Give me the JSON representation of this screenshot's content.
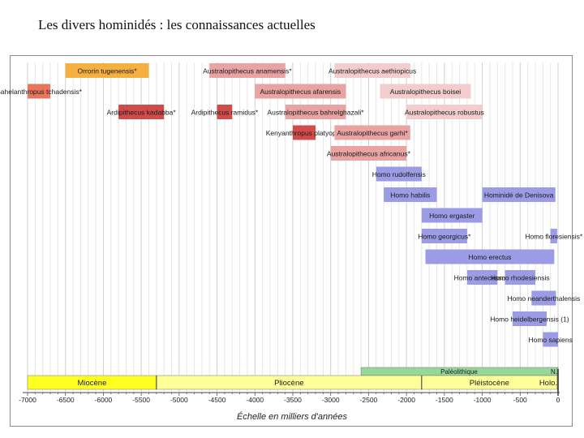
{
  "page": {
    "title": "Les divers hominidés : les connaissances actuelles",
    "caption": "Échelle en milliers d'années"
  },
  "chart_data": {
    "type": "timeline",
    "title": "Les divers hominidés : les connaissances actuelles",
    "xlabel": "Échelle en milliers d'années",
    "xlim": [
      -7100,
      0
    ],
    "ticks": [
      -7000,
      -6500,
      -6000,
      -5500,
      -5000,
      -4500,
      -4000,
      -3500,
      -3000,
      -2500,
      -2000,
      -1500,
      -1000,
      -500,
      0
    ],
    "colors": {
      "orange": "#f5b041",
      "salmon": "#e8765e",
      "red": "#d14b4b",
      "pink": "#e9a3a3",
      "lightpink": "#f3cdcd",
      "blue": "#9b9be6",
      "green": "#95d89a",
      "yellow": "#ffff22",
      "lightyellow": "#ffff99"
    },
    "species": [
      {
        "name": "Orrorin tugenensis*",
        "start": -6500,
        "end": -5400,
        "row": 0,
        "color": "orange"
      },
      {
        "name": "Australopithecus anamensis*",
        "start": -4600,
        "end": -3600,
        "row": 0,
        "color": "pink"
      },
      {
        "name": "Australopithecus aethiopicus",
        "start": -2950,
        "end": -1950,
        "row": 0,
        "color": "lightpink"
      },
      {
        "name": "Sahelanthropus tchadensis*",
        "start": -7000,
        "end": -6700,
        "row": 1,
        "color": "salmon"
      },
      {
        "name": "Australopithecus afarensis",
        "start": -4000,
        "end": -2800,
        "row": 1,
        "color": "pink"
      },
      {
        "name": "Australopithecus boisei",
        "start": -2350,
        "end": -1150,
        "row": 1,
        "color": "lightpink"
      },
      {
        "name": "Ardipithecus kadabba*",
        "start": -5800,
        "end": -5200,
        "row": 2,
        "color": "red"
      },
      {
        "name": "Ardipithecus ramidus*",
        "start": -4500,
        "end": -4300,
        "row": 2,
        "color": "red"
      },
      {
        "name": "Australopithecus bahrelghazali*",
        "start": -3600,
        "end": -2800,
        "row": 2,
        "color": "pink"
      },
      {
        "name": "Australopithecus robustus",
        "start": -2000,
        "end": -1000,
        "row": 2,
        "color": "lightpink"
      },
      {
        "name": "Kenyanthropus platyops*",
        "start": -3500,
        "end": -3200,
        "row": 3,
        "color": "red"
      },
      {
        "name": "Australopithecus garhi*",
        "start": -2950,
        "end": -1950,
        "row": 3,
        "color": "pink"
      },
      {
        "name": "Australopithecus africanus*",
        "start": -3000,
        "end": -2000,
        "row": 4,
        "color": "pink"
      },
      {
        "name": "Homo rudolfensis",
        "start": -2400,
        "end": -1800,
        "row": 5,
        "color": "blue"
      },
      {
        "name": "Homo habilis",
        "start": -2300,
        "end": -1600,
        "row": 6,
        "color": "blue"
      },
      {
        "name": "Hominidé de Denisova",
        "start": -1000,
        "end": -35,
        "row": 6,
        "color": "blue"
      },
      {
        "name": "Homo ergaster",
        "start": -1800,
        "end": -1000,
        "row": 7,
        "color": "blue"
      },
      {
        "name": "Homo georgicus*",
        "start": -1800,
        "end": -1200,
        "row": 8,
        "color": "blue"
      },
      {
        "name": "Homo floresiensis*",
        "start": -100,
        "end": -12,
        "row": 8,
        "color": "blue"
      },
      {
        "name": "Homo erectus",
        "start": -1750,
        "end": -50,
        "row": 9,
        "color": "blue"
      },
      {
        "name": "Homo antecessor*",
        "start": -1200,
        "end": -800,
        "row": 10,
        "color": "blue"
      },
      {
        "name": "Homo rhodesiensis",
        "start": -700,
        "end": -300,
        "row": 10,
        "color": "blue"
      },
      {
        "name": "Homo neanderthalensis",
        "start": -350,
        "end": -28,
        "row": 11,
        "color": "blue"
      },
      {
        "name": "Homo heidelbergensis (1)",
        "start": -600,
        "end": -150,
        "row": 12,
        "color": "blue"
      },
      {
        "name": "Homo sapiens",
        "start": -200,
        "end": 0,
        "row": 13,
        "color": "blue"
      }
    ],
    "periods": [
      {
        "name": "Paléolithique",
        "start": -2600,
        "end": -12,
        "band": "top",
        "color": "green"
      },
      {
        "name": "N.",
        "start": -12,
        "end": 0,
        "band": "top",
        "color": "green"
      },
      {
        "name": "Miocène",
        "start": -7000,
        "end": -5300,
        "band": "bottom",
        "color": "yellow"
      },
      {
        "name": "Pliocène",
        "start": -5300,
        "end": -1800,
        "band": "bottom",
        "color": "lightyellow"
      },
      {
        "name": "Pléistocène",
        "start": -1800,
        "end": -12,
        "band": "bottom",
        "color": "lightyellow"
      },
      {
        "name": "Holo.",
        "start": -12,
        "end": 0,
        "band": "bottom",
        "color": "yellow"
      }
    ]
  }
}
